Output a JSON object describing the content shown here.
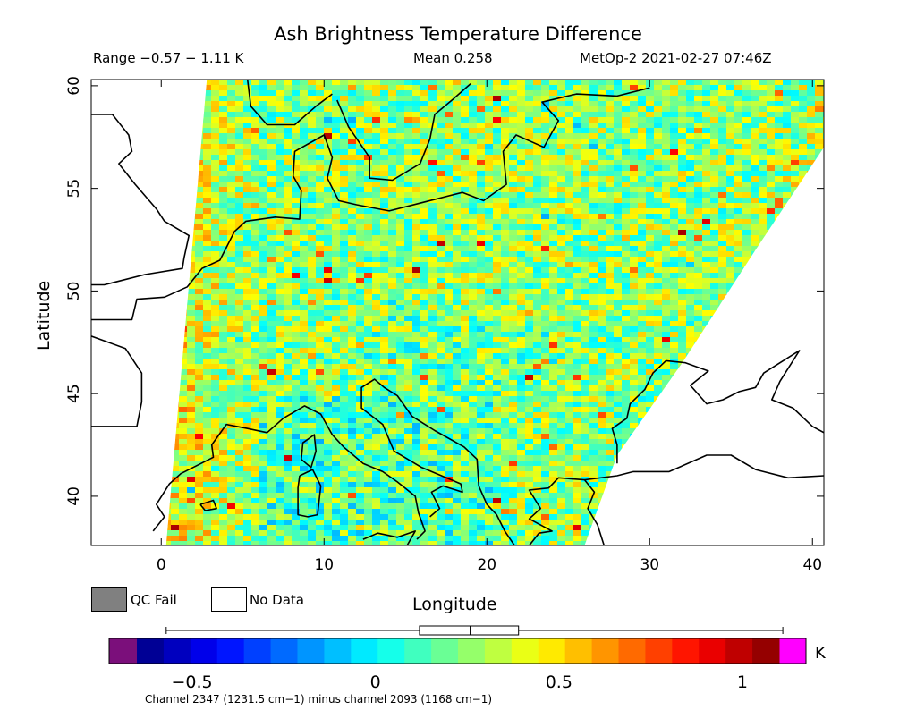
{
  "chart_data": {
    "type": "heatmap",
    "title": "Ash Brightness Temperature Difference",
    "range_text": "Range −0.57 − 1.11 K",
    "mean_text": "Mean 0.258",
    "satellite_text": "MetOp-2 2021-02-27 07:46Z",
    "xlabel": "Longitude",
    "ylabel": "Latitude",
    "xlim": [
      -4.3,
      40.7
    ],
    "ylim": [
      37.6,
      60.3
    ],
    "x_ticks": [
      0,
      10,
      20,
      30,
      40
    ],
    "x_tick_labels": [
      "0",
      "10",
      "20",
      "30",
      "40"
    ],
    "y_ticks": [
      40,
      45,
      50,
      55,
      60
    ],
    "y_tick_labels": [
      "40",
      "45",
      "50",
      "55",
      "60"
    ],
    "swath": {
      "west_edge": [
        [
          2.8,
          60.3
        ],
        [
          0.3,
          37.6
        ]
      ],
      "east_edge": [
        [
          40.7,
          60.3
        ],
        [
          40.7,
          57.0
        ],
        [
          36.5,
          52.0
        ],
        [
          32.0,
          46.5
        ],
        [
          28.0,
          42.0
        ],
        [
          26.0,
          37.6
        ]
      ]
    },
    "value_range": [
      -0.57,
      1.11
    ],
    "mean": 0.258,
    "legend": {
      "qc_fail": "QC Fail",
      "no_data": "No Data",
      "qc_fail_color": "#808080",
      "no_data_color": "#ffffff"
    },
    "colorbar": {
      "min": -0.65,
      "max": 1.1,
      "ticks": [
        -0.5,
        0,
        0.5,
        1
      ],
      "tick_labels": [
        "−0.5",
        "0",
        "0.5",
        "1"
      ],
      "unit": "K",
      "under_color": "#7b0f7b",
      "over_color": "#ff00ff",
      "caption": "Channel 2347 (1231.5 cm−1) minus channel 2093 (1168 cm−1)"
    }
  }
}
